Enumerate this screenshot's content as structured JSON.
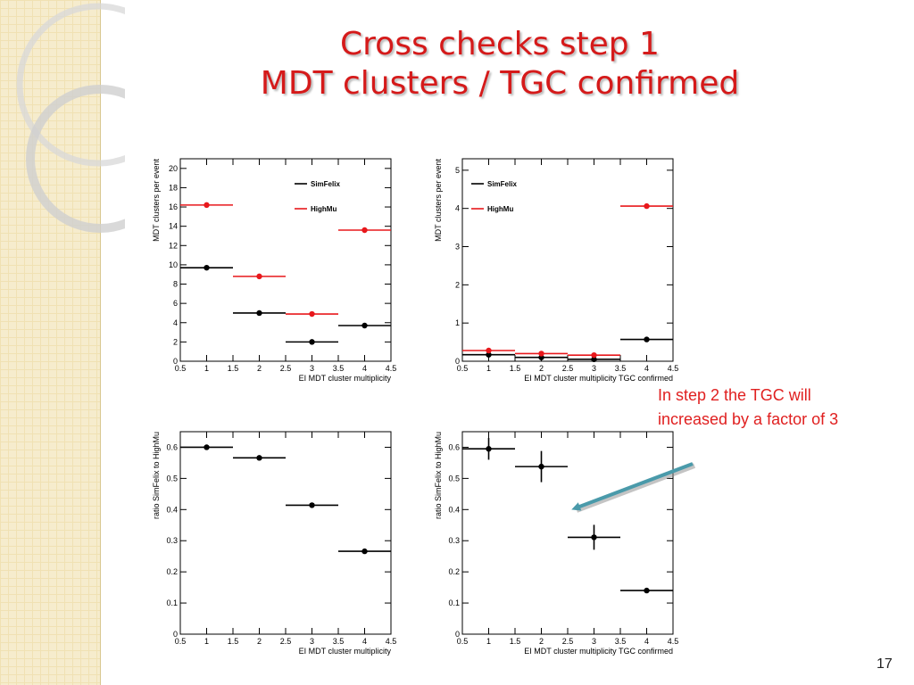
{
  "slide": {
    "title_line1": "Cross checks step 1",
    "title_line2": "MDT clusters / TGC confirmed",
    "annotation_line1": "In step 2 the TGC will",
    "annotation_line2": "increased by a factor of 3",
    "page_number": "17"
  },
  "colors": {
    "title": "#d51a1a",
    "simfelix": "#000000",
    "highmu": "#e8181c",
    "arrow": "#4a9aaa"
  },
  "chart_data": [
    {
      "type": "scatter",
      "title": "",
      "xlabel": "EI MDT cluster multiplicity",
      "ylabel": "MDT clusters per event",
      "xlim": [
        0.5,
        4.5
      ],
      "ylim": [
        0,
        21
      ],
      "x_ticks": [
        0.5,
        1,
        1.5,
        2,
        2.5,
        3,
        3.5,
        4,
        4.5
      ],
      "y_ticks": [
        0,
        2,
        4,
        6,
        8,
        10,
        12,
        14,
        16,
        18,
        20
      ],
      "legend": [
        "SimFelix",
        "HighMu"
      ],
      "legend_position": "top-right",
      "x": [
        1,
        2,
        3,
        4
      ],
      "series": [
        {
          "name": "SimFelix",
          "color": "#000000",
          "values": [
            9.7,
            5.0,
            2.0,
            3.7
          ],
          "errors": [
            0,
            0,
            0,
            0
          ]
        },
        {
          "name": "HighMu",
          "color": "#e8181c",
          "values": [
            16.2,
            8.8,
            4.9,
            13.6
          ],
          "errors": [
            0,
            0,
            0,
            0
          ]
        }
      ]
    },
    {
      "type": "scatter",
      "title": "",
      "xlabel": "EI MDT cluster multiplicity TGC confirmed",
      "ylabel": "MDT clusters per event",
      "xlim": [
        0.5,
        4.5
      ],
      "ylim": [
        0,
        5.3
      ],
      "x_ticks": [
        0.5,
        1,
        1.5,
        2,
        2.5,
        3,
        3.5,
        4,
        4.5
      ],
      "y_ticks": [
        0,
        1,
        2,
        3,
        4,
        5
      ],
      "legend": [
        "SimFelix",
        "HighMu"
      ],
      "legend_position": "top-left",
      "x": [
        1,
        2,
        3,
        4
      ],
      "series": [
        {
          "name": "SimFelix",
          "color": "#000000",
          "values": [
            0.17,
            0.1,
            0.05,
            0.57
          ],
          "errors": [
            0,
            0,
            0,
            0
          ]
        },
        {
          "name": "HighMu",
          "color": "#e8181c",
          "values": [
            0.28,
            0.2,
            0.16,
            4.06
          ],
          "errors": [
            0,
            0,
            0,
            0
          ]
        }
      ]
    },
    {
      "type": "scatter",
      "title": "",
      "xlabel": "EI MDT cluster multiplicity",
      "ylabel": "ratio SimFelix to HighMu",
      "xlim": [
        0.5,
        4.5
      ],
      "ylim": [
        0,
        0.65
      ],
      "x_ticks": [
        0.5,
        1,
        1.5,
        2,
        2.5,
        3,
        3.5,
        4,
        4.5
      ],
      "y_ticks": [
        0,
        0.1,
        0.2,
        0.3,
        0.4,
        0.5,
        0.6
      ],
      "legend": [],
      "x": [
        1,
        2,
        3,
        4
      ],
      "series": [
        {
          "name": "",
          "color": "#000000",
          "values": [
            0.6,
            0.566,
            0.414,
            0.266
          ],
          "errors": [
            0,
            0,
            0,
            0
          ]
        }
      ]
    },
    {
      "type": "scatter",
      "title": "",
      "xlabel": "EI MDT cluster multiplicity TGC confirmed",
      "ylabel": "ratio SimFelix to HighMu",
      "xlim": [
        0.5,
        4.5
      ],
      "ylim": [
        0,
        0.65
      ],
      "x_ticks": [
        0.5,
        1,
        1.5,
        2,
        2.5,
        3,
        3.5,
        4,
        4.5
      ],
      "y_ticks": [
        0,
        0.1,
        0.2,
        0.3,
        0.4,
        0.5,
        0.6
      ],
      "legend": [],
      "x": [
        1,
        2,
        3,
        4
      ],
      "series": [
        {
          "name": "",
          "color": "#000000",
          "values": [
            0.595,
            0.538,
            0.311,
            0.14
          ],
          "errors": [
            0.035,
            0.05,
            0.04,
            0
          ]
        }
      ]
    }
  ]
}
